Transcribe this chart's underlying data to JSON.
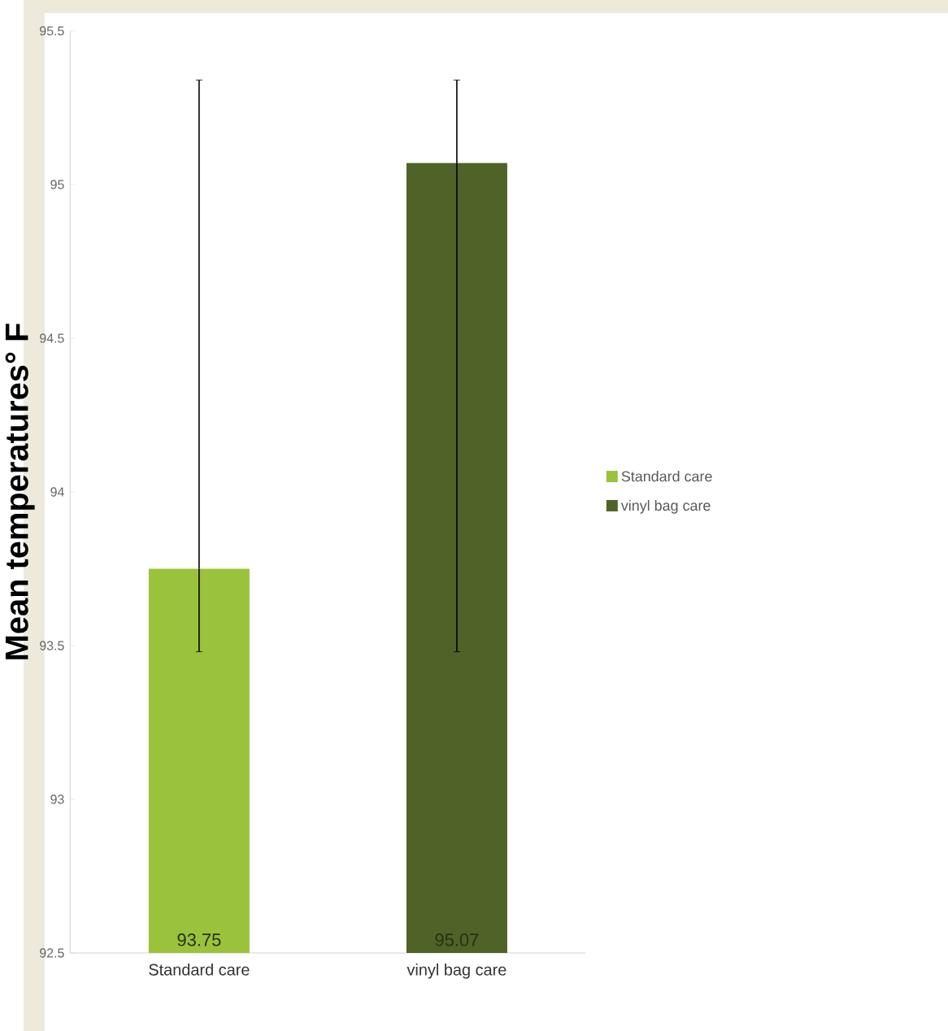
{
  "chart_data": {
    "type": "bar",
    "ylabel": "Mean temperatures° F",
    "categories": [
      "Standard care",
      "vinyl bag care"
    ],
    "series": [
      {
        "name": "Standard care",
        "color": "#9bc23c",
        "values": [
          93.75,
          null
        ],
        "errors": [
          [
            93.48,
            95.34
          ],
          null
        ]
      },
      {
        "name": "vinyl bag care",
        "color": "#4f6228",
        "values": [
          null,
          95.07
        ],
        "errors": [
          null,
          [
            93.48,
            95.34
          ]
        ]
      }
    ],
    "ylim": [
      92.5,
      95.5
    ],
    "yticks": [
      92.5,
      93,
      93.5,
      94,
      94.5,
      95,
      95.5
    ],
    "data_labels": true,
    "legend": "right",
    "grid": false
  }
}
